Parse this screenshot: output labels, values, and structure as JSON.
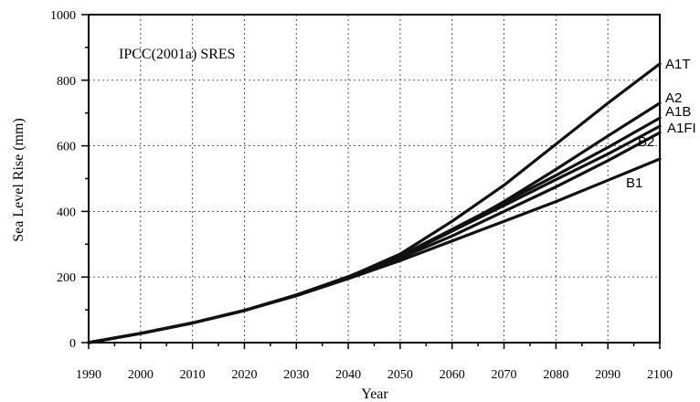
{
  "chart_data": {
    "type": "line",
    "annotation": "IPCC(2001a) SRES",
    "xlabel": "Year",
    "ylabel": "Sea Level Rise (mm)",
    "xlim": [
      1990,
      2100
    ],
    "ylim": [
      0,
      1000
    ],
    "xticks": [
      1990,
      2000,
      2010,
      2020,
      2030,
      2040,
      2050,
      2060,
      2070,
      2080,
      2090,
      2100
    ],
    "yticks": [
      0,
      200,
      400,
      600,
      800,
      1000
    ],
    "grid": true,
    "x": [
      1990,
      2000,
      2010,
      2020,
      2030,
      2040,
      2050,
      2060,
      2070,
      2080,
      2090,
      2100
    ],
    "series": [
      {
        "name": "A1T",
        "values": [
          0,
          28,
          60,
          98,
          145,
          200,
          270,
          370,
          480,
          605,
          730,
          850
        ]
      },
      {
        "name": "A2",
        "values": [
          0,
          28,
          60,
          98,
          145,
          200,
          262,
          340,
          430,
          528,
          630,
          730
        ]
      },
      {
        "name": "A1B",
        "values": [
          0,
          28,
          60,
          98,
          145,
          201,
          265,
          345,
          427,
          510,
          595,
          685
        ]
      },
      {
        "name": "A1FI",
        "values": [
          0,
          28,
          60,
          98,
          145,
          200,
          263,
          340,
          418,
          497,
          575,
          660
        ]
      },
      {
        "name": "B2",
        "values": [
          0,
          28,
          60,
          98,
          145,
          198,
          258,
          325,
          400,
          475,
          555,
          640
        ]
      },
      {
        "name": "B1",
        "values": [
          0,
          28,
          60,
          98,
          143,
          195,
          250,
          310,
          370,
          430,
          495,
          560
        ]
      }
    ],
    "series_label_order": [
      "A1T",
      "A2",
      "A1B",
      "A1FI",
      "B2",
      "B1"
    ]
  }
}
